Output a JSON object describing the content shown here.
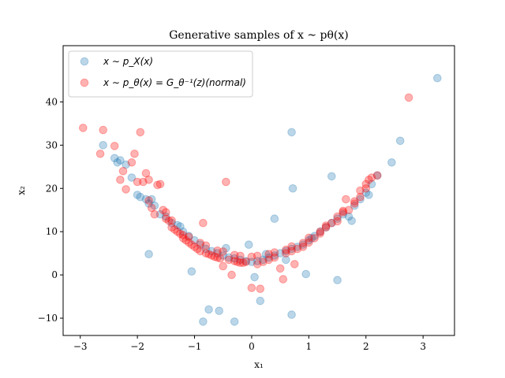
{
  "chart_data": {
    "type": "scatter",
    "title": "Generative samples of  x ~ pθ(x)",
    "xlabel": "x₁",
    "ylabel": "x₂",
    "xlim": [
      -3.3,
      3.55
    ],
    "ylim": [
      -14,
      53
    ],
    "xticks": [
      -3,
      -2,
      -1,
      0,
      1,
      2,
      3
    ],
    "yticks": [
      -10,
      0,
      10,
      20,
      30,
      40
    ],
    "grid": false,
    "legend_position": "upper left",
    "series": [
      {
        "name": "x ~ p_X(x)",
        "color": "#1f77b4",
        "alpha": 0.3,
        "points": [
          [
            -2.6,
            30
          ],
          [
            -2.4,
            27
          ],
          [
            -2.35,
            26
          ],
          [
            -2.3,
            26.5
          ],
          [
            -2.2,
            25.5
          ],
          [
            -2.1,
            22.5
          ],
          [
            -2.0,
            18.5
          ],
          [
            -1.95,
            18
          ],
          [
            -1.85,
            17.5
          ],
          [
            -1.8,
            16.5
          ],
          [
            -1.75,
            17.5
          ],
          [
            -1.7,
            16
          ],
          [
            -1.6,
            14
          ],
          [
            -1.5,
            13.5
          ],
          [
            -1.4,
            12
          ],
          [
            -1.3,
            11.5
          ],
          [
            -1.2,
            10
          ],
          [
            -1.1,
            9
          ],
          [
            -1.0,
            8
          ],
          [
            -0.9,
            7
          ],
          [
            -0.8,
            6
          ],
          [
            -0.7,
            5.5
          ],
          [
            -0.6,
            5
          ],
          [
            -0.5,
            4.5
          ],
          [
            -0.4,
            4
          ],
          [
            -0.3,
            3.8
          ],
          [
            -0.2,
            3.5
          ],
          [
            -0.1,
            3.2
          ],
          [
            0,
            3
          ],
          [
            0.1,
            3.2
          ],
          [
            0.2,
            3.5
          ],
          [
            0.3,
            4
          ],
          [
            0.4,
            4.5
          ],
          [
            0.5,
            5
          ],
          [
            0.6,
            5.5
          ],
          [
            0.7,
            6
          ],
          [
            0.8,
            6.5
          ],
          [
            0.9,
            7
          ],
          [
            1.0,
            8
          ],
          [
            1.1,
            9
          ],
          [
            1.2,
            10
          ],
          [
            1.3,
            11
          ],
          [
            1.4,
            12
          ],
          [
            1.5,
            13
          ],
          [
            1.6,
            14
          ],
          [
            1.7,
            13.5
          ],
          [
            1.75,
            12.5
          ],
          [
            1.8,
            16
          ],
          [
            1.9,
            17.5
          ],
          [
            2.0,
            19
          ],
          [
            2.05,
            18.5
          ],
          [
            2.1,
            21
          ],
          [
            2.2,
            23
          ],
          [
            2.45,
            26
          ],
          [
            2.6,
            31
          ],
          [
            3.25,
            45.5
          ],
          [
            -1.8,
            4.8
          ],
          [
            -1.05,
            0.8
          ],
          [
            -0.85,
            -10.8
          ],
          [
            -0.75,
            -8
          ],
          [
            -0.57,
            -8.3
          ],
          [
            -0.3,
            -10.8
          ],
          [
            0.05,
            -0.5
          ],
          [
            0.15,
            -6
          ],
          [
            0.4,
            13
          ],
          [
            0.7,
            33
          ],
          [
            0.72,
            20
          ],
          [
            0.7,
            -9.2
          ],
          [
            0.95,
            0.2
          ],
          [
            1.4,
            22.8
          ],
          [
            1.5,
            -1.2
          ],
          [
            0.6,
            3.5
          ],
          [
            -0.05,
            7
          ],
          [
            0.25,
            4.8
          ],
          [
            -0.45,
            6.2
          ],
          [
            1.05,
            8.5
          ],
          [
            -1.25,
            11.2
          ]
        ]
      },
      {
        "name": "x ~ pθ(x) = Gθ⁻¹(z)(normal)",
        "color": "#ff0000",
        "alpha": 0.3,
        "points": [
          [
            -2.95,
            34
          ],
          [
            -2.65,
            28
          ],
          [
            -2.6,
            33.5
          ],
          [
            -2.4,
            29.8
          ],
          [
            -2.3,
            22
          ],
          [
            -2.25,
            24
          ],
          [
            -2.2,
            19.8
          ],
          [
            -2.1,
            26
          ],
          [
            -2.05,
            28
          ],
          [
            -1.95,
            33
          ],
          [
            -1.9,
            21.5
          ],
          [
            -1.85,
            23.5
          ],
          [
            -1.8,
            22
          ],
          [
            -1.75,
            15.5
          ],
          [
            -1.7,
            14
          ],
          [
            -1.65,
            20.8
          ],
          [
            -1.6,
            21
          ],
          [
            -1.55,
            15
          ],
          [
            -1.5,
            13
          ],
          [
            -1.45,
            12.5
          ],
          [
            -1.4,
            11
          ],
          [
            -1.35,
            10.5
          ],
          [
            -1.3,
            10
          ],
          [
            -1.25,
            9.5
          ],
          [
            -1.2,
            8.5
          ],
          [
            -1.15,
            8
          ],
          [
            -1.1,
            7.5
          ],
          [
            -1.05,
            7
          ],
          [
            -1.0,
            6.5
          ],
          [
            -0.95,
            6
          ],
          [
            -0.9,
            5.5
          ],
          [
            -0.85,
            12
          ],
          [
            -0.8,
            5
          ],
          [
            -0.75,
            4.8
          ],
          [
            -0.7,
            4.5
          ],
          [
            -0.65,
            4.2
          ],
          [
            -0.6,
            4
          ],
          [
            -0.55,
            3.8
          ],
          [
            -0.5,
            2
          ],
          [
            -0.45,
            21.5
          ],
          [
            -0.4,
            3.5
          ],
          [
            -0.35,
            0
          ],
          [
            -0.3,
            3.2
          ],
          [
            -0.25,
            3
          ],
          [
            -0.2,
            2.8
          ],
          [
            -0.15,
            2.8
          ],
          [
            -0.1,
            3
          ],
          [
            0,
            -3
          ],
          [
            0.1,
            2.5
          ],
          [
            0.15,
            -3.2
          ],
          [
            0.2,
            3
          ],
          [
            0.3,
            3.5
          ],
          [
            0.4,
            4
          ],
          [
            0.5,
            1.5
          ],
          [
            0.55,
            -1
          ],
          [
            0.6,
            5
          ],
          [
            0.7,
            5.5
          ],
          [
            0.75,
            2.5
          ],
          [
            0.8,
            6
          ],
          [
            0.9,
            6.5
          ],
          [
            1.0,
            7.5
          ],
          [
            1.1,
            8.5
          ],
          [
            1.2,
            10
          ],
          [
            1.3,
            11
          ],
          [
            1.4,
            12
          ],
          [
            1.5,
            13.5
          ],
          [
            1.6,
            14.5
          ],
          [
            1.65,
            17.5
          ],
          [
            1.7,
            15
          ],
          [
            1.8,
            16.5
          ],
          [
            1.9,
            18
          ],
          [
            2.0,
            21
          ],
          [
            2.05,
            22
          ],
          [
            2.1,
            22.5
          ],
          [
            2.2,
            23
          ],
          [
            2.75,
            41
          ],
          [
            -1.5,
            14.5
          ],
          [
            -1.2,
            9.2
          ],
          [
            -0.9,
            7.4
          ],
          [
            -0.6,
            5.6
          ],
          [
            -0.3,
            4.6
          ],
          [
            0,
            4.2
          ],
          [
            0.3,
            4.8
          ],
          [
            0.6,
            5.8
          ],
          [
            0.9,
            7.4
          ],
          [
            1.2,
            9.6
          ],
          [
            1.5,
            12.4
          ],
          [
            1.8,
            17
          ],
          [
            -1.4,
            12.6
          ],
          [
            -1.1,
            8.8
          ],
          [
            -0.8,
            6.8
          ],
          [
            -0.5,
            5.4
          ],
          [
            -0.2,
            4.4
          ],
          [
            0.1,
            4.4
          ],
          [
            0.4,
            5.2
          ],
          [
            0.7,
            6.6
          ],
          [
            1.0,
            8.6
          ],
          [
            1.3,
            11.4
          ],
          [
            1.6,
            14.8
          ],
          [
            1.9,
            19.5
          ],
          [
            -1.8,
            17.2
          ],
          [
            -2.0,
            21.5
          ],
          [
            2.0,
            20
          ]
        ]
      }
    ]
  },
  "legend": {
    "entries": [
      {
        "text": "x ∼ p_X(x)",
        "color": "#1f77b4"
      },
      {
        "text": "x ∼ p_θ(x) = G_θ⁻¹(z)(normal)",
        "color": "#ff0000"
      }
    ]
  }
}
